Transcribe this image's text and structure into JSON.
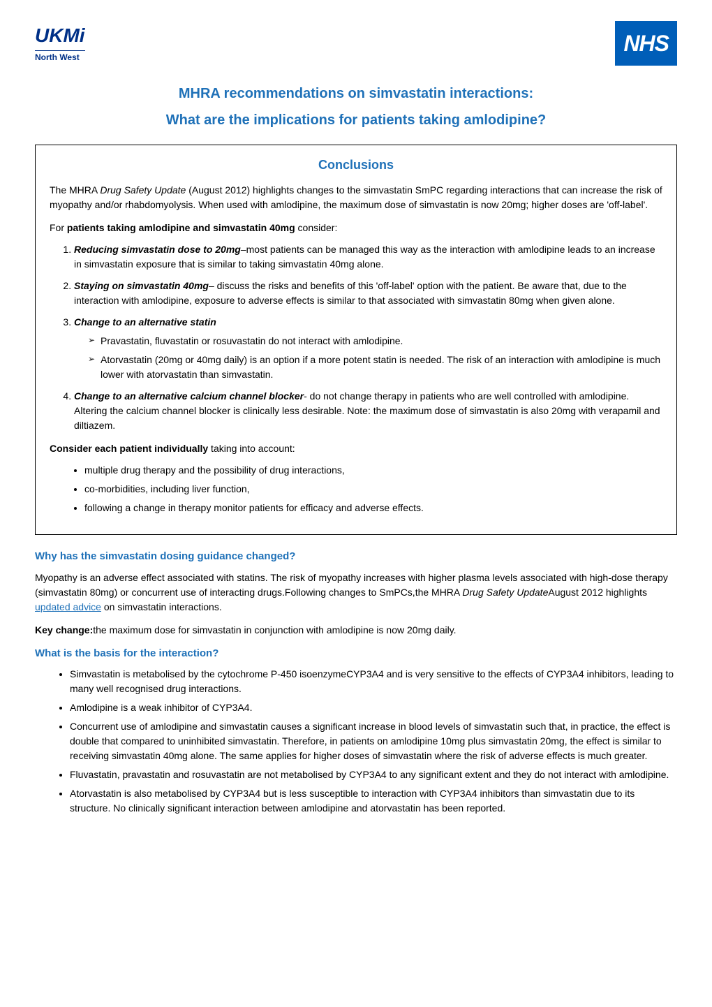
{
  "header": {
    "ukmi_logo_top": "UKMi",
    "ukmi_logo_bottom": "North West",
    "nhs_logo": "NHS"
  },
  "main_title": "MHRA recommendations on simvastatin interactions:",
  "sub_title": "What are the implications for patients taking amlodipine?",
  "conclusions": {
    "heading": "Conclusions",
    "intro_text_1": "The MHRA ",
    "intro_italic": "Drug Safety Update",
    "intro_text_2": " (August 2012) highlights changes to the simvastatin SmPC regarding interactions that can increase the risk of myopathy and/or rhabdomyolysis. When used with amlodipine, the maximum dose of simvastatin is now 20mg; higher doses are 'off-label'.",
    "list_intro_1": "For ",
    "list_intro_bold": "patients taking amlodipine and simvastatin 40mg",
    "list_intro_2": " consider:",
    "items": [
      {
        "bold_title": "Reducing simvastatin dose to 20mg",
        "text": "–most patients can be managed this way as the interaction with amlodipine leads to an increase in simvastatin exposure that is similar to taking simvastatin 40mg alone."
      },
      {
        "bold_title": "Staying on simvastatin 40mg",
        "text": "– discuss the risks and benefits of this 'off-label' option with the patient. Be aware that, due to the interaction with amlodipine, exposure to adverse effects is similar to that associated with simvastatin 80mg when given alone."
      },
      {
        "bold_title": "Change to an alternative statin",
        "text": "",
        "sub_items": [
          "Pravastatin, fluvastatin or rosuvastatin do not interact with amlodipine.",
          "Atorvastatin (20mg or 40mg daily) is an option if a more potent statin is needed. The risk of an interaction with amlodipine is much lower with atorvastatin than simvastatin."
        ]
      },
      {
        "bold_title": "Change to an alternative calcium channel blocker",
        "text": "- do not change therapy in patients who are well controlled with amlodipine. Altering the calcium channel blocker is clinically less desirable. Note: the maximum dose of simvastatin is also 20mg with verapamil and diltiazem."
      }
    ],
    "consider_intro_bold": "Consider each patient individually",
    "consider_intro_text": " taking into account:",
    "consider_bullets": [
      "multiple drug therapy and the possibility of drug interactions,",
      "co-morbidities, including liver function,",
      "following a change in therapy monitor patients for efficacy and adverse effects."
    ]
  },
  "section_why": {
    "heading": "Why has the simvastatin dosing guidance changed?",
    "para_1": "Myopathy is an adverse effect associated with statins. The risk of myopathy increases with higher plasma levels associated with high-dose therapy (simvastatin 80mg) or concurrent use of interacting drugs.Following changes to SmPCs,the MHRA ",
    "para_italic": "Drug Safety Update",
    "para_2": "August 2012 highlights ",
    "link_text": "updated advice",
    "para_3": " on simvastatin interactions.",
    "key_change_bold": "Key change:",
    "key_change_text": "the maximum dose for simvastatin in conjunction with amlodipine is now 20mg daily."
  },
  "section_basis": {
    "heading": "What is the basis for the interaction?",
    "bullets": [
      "Simvastatin is metabolised by the cytochrome P-450 isoenzymeCYP3A4 and is very sensitive to the effects of CYP3A4 inhibitors, leading to many well recognised drug interactions.",
      "Amlodipine is a weak inhibitor of CYP3A4.",
      "Concurrent use of amlodipine and simvastatin causes a significant increase in blood levels of simvastatin such that, in practice, the effect is double that compared to uninhibited simvastatin. Therefore, in patients on amlodipine 10mg plus simvastatin 20mg, the effect is similar to receiving simvastatin 40mg alone. The same applies for higher doses of simvastatin where the risk of adverse effects is much greater.",
      "Fluvastatin, pravastatin and rosuvastatin are not metabolised by CYP3A4 to any significant extent and they do not interact with amlodipine.",
      "Atorvastatin is also metabolised by CYP3A4 but is less susceptible to interaction with CYP3A4 inhibitors than simvastatin due to its structure. No clinically significant interaction between amlodipine and atorvastatin has been reported."
    ]
  },
  "colors": {
    "blue_heading": "#1f71b8",
    "nhs_blue": "#005eb8",
    "ukmi_blue": "#003087",
    "text_black": "#000000",
    "background": "#ffffff"
  }
}
